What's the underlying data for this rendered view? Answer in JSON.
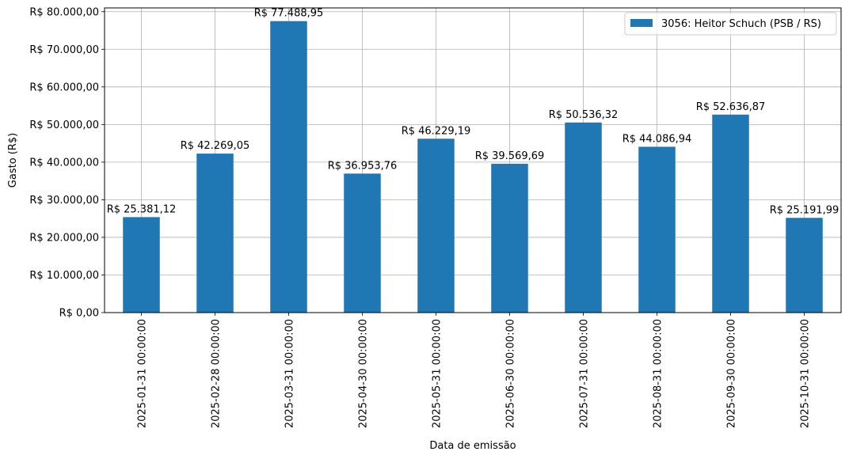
{
  "chart_data": {
    "type": "bar",
    "xlabel": "Data de emissão",
    "ylabel": "Gasto (R$)",
    "categories": [
      "2025-01-31 00:00:00",
      "2025-02-28 00:00:00",
      "2025-03-31 00:00:00",
      "2025-04-30 00:00:00",
      "2025-05-31 00:00:00",
      "2025-06-30 00:00:00",
      "2025-07-31 00:00:00",
      "2025-08-31 00:00:00",
      "2025-09-30 00:00:00",
      "2025-10-31 00:00:00"
    ],
    "series": [
      {
        "name": "3056: Heitor Schuch (PSB / RS)",
        "color": "#1f77b4",
        "values": [
          25381.12,
          42269.05,
          77488.95,
          36953.76,
          46229.19,
          39569.69,
          50536.32,
          44086.94,
          52636.87,
          25191.99
        ],
        "value_labels": [
          "R$ 25.381,12",
          "R$ 42.269,05",
          "R$ 77.488,95",
          "R$ 36.953,76",
          "R$ 46.229,19",
          "R$ 39.569,69",
          "R$ 50.536,32",
          "R$ 44.086,94",
          "R$ 52.636,87",
          "R$ 25.191,99"
        ]
      }
    ],
    "ylim": [
      0,
      81000
    ],
    "yticks": [
      0,
      10000,
      20000,
      30000,
      40000,
      50000,
      60000,
      70000,
      80000
    ],
    "ytick_labels": [
      "R$ 0,00",
      "R$ 10.000,00",
      "R$ 20.000,00",
      "R$ 30.000,00",
      "R$ 40.000,00",
      "R$ 50.000,00",
      "R$ 60.000,00",
      "R$ 70.000,00",
      "R$ 80.000,00"
    ],
    "grid": true,
    "legend_position": "top-right"
  }
}
